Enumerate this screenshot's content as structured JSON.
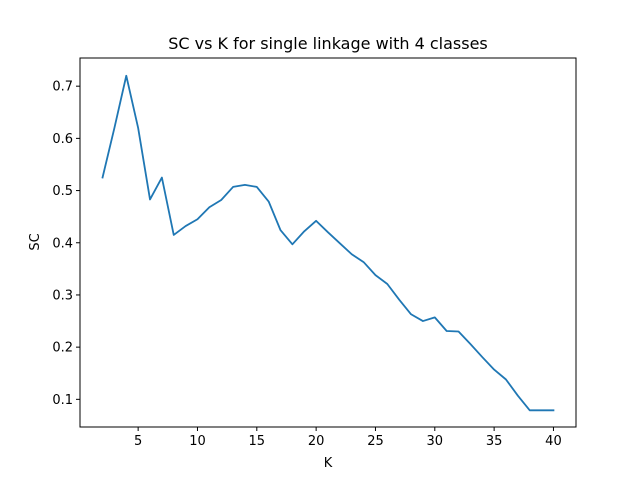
{
  "chart_data": {
    "type": "line",
    "title": "SC vs K for single linkage with 4 classes",
    "xlabel": "K",
    "ylabel": "SC",
    "xlim": [
      0.1,
      41.9
    ],
    "ylim": [
      0.047,
      0.754
    ],
    "xticks": [
      5,
      10,
      15,
      20,
      25,
      30,
      35,
      40
    ],
    "yticks": [
      0.1,
      0.2,
      0.3,
      0.4,
      0.5,
      0.6,
      0.7
    ],
    "xtick_labels": [
      "5",
      "10",
      "15",
      "20",
      "25",
      "30",
      "35",
      "40"
    ],
    "ytick_labels": [
      "0.1",
      "0.2",
      "0.3",
      "0.4",
      "0.5",
      "0.6",
      "0.7"
    ],
    "grid": false,
    "series": [
      {
        "color": "#1f77b4",
        "x": [
          2,
          3,
          4,
          5,
          6,
          7,
          8,
          9,
          10,
          11,
          12,
          13,
          14,
          15,
          16,
          17,
          18,
          19,
          20,
          21,
          22,
          23,
          24,
          25,
          26,
          27,
          28,
          29,
          30,
          31,
          32,
          33,
          34,
          35,
          36,
          37,
          38,
          39,
          40
        ],
        "y": [
          0.525,
          0.62,
          0.72,
          0.62,
          0.483,
          0.525,
          0.415,
          0.432,
          0.445,
          0.468,
          0.482,
          0.507,
          0.511,
          0.507,
          0.479,
          0.424,
          0.397,
          0.422,
          0.442,
          0.42,
          0.399,
          0.378,
          0.363,
          0.338,
          0.321,
          0.291,
          0.263,
          0.25,
          0.257,
          0.231,
          0.23,
          0.206,
          0.181,
          0.157,
          0.138,
          0.107,
          0.079,
          0.079,
          0.079
        ]
      }
    ]
  }
}
